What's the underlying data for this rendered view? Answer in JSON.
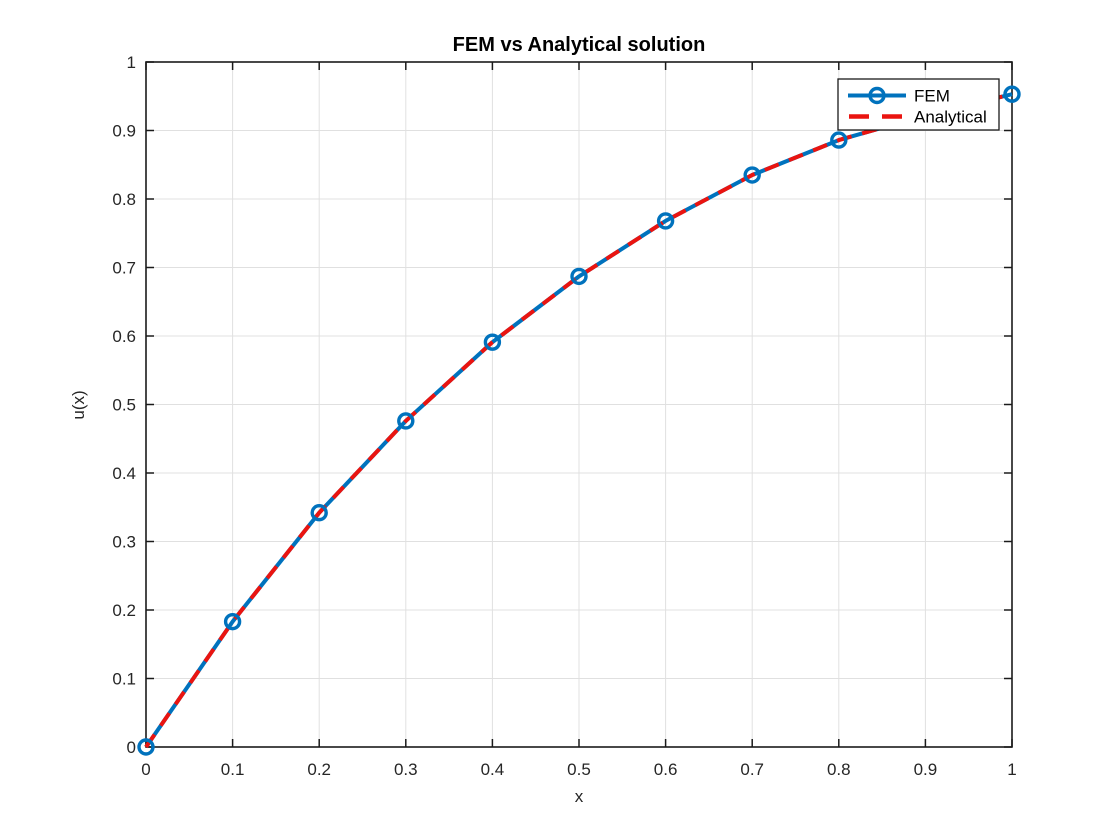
{
  "figure": {
    "title": "FEM vs Analytical solution",
    "xlabel": "x",
    "ylabel": "u(x)"
  },
  "legend": {
    "position": "top-right",
    "entries": [
      {
        "label": "FEM",
        "swatch": "solid-line-with-circle-marker",
        "color": "#0072bd"
      },
      {
        "label": "Analytical",
        "swatch": "dashed-line",
        "color": "#ea1410"
      }
    ]
  },
  "colors": {
    "fem_blue": "#0072bd",
    "analytical_red": "#ea1410",
    "grid": "#e0e0e0",
    "axis": "#1a1a1a",
    "tick_text": "#262626",
    "background": "#ffffff",
    "legend_background": "#ffffff",
    "legend_border": "#1a1a1a"
  },
  "chart_data": {
    "type": "line",
    "title": "FEM vs Analytical solution",
    "xlabel": "x",
    "ylabel": "u(x)",
    "xlim": [
      0,
      1
    ],
    "ylim": [
      0,
      1
    ],
    "grid": true,
    "legend_position": "top-right",
    "xticks": [
      0,
      0.1,
      0.2,
      0.3,
      0.4,
      0.5,
      0.6,
      0.7,
      0.8,
      0.9,
      1
    ],
    "xtick_labels": [
      "0",
      "0.1",
      "0.2",
      "0.3",
      "0.4",
      "0.5",
      "0.6",
      "0.7",
      "0.8",
      "0.9",
      "1"
    ],
    "yticks": [
      0,
      0.1,
      0.2,
      0.3,
      0.4,
      0.5,
      0.6,
      0.7,
      0.8,
      0.9,
      1
    ],
    "ytick_labels": [
      "0",
      "0.1",
      "0.2",
      "0.3",
      "0.4",
      "0.5",
      "0.6",
      "0.7",
      "0.8",
      "0.9",
      "1"
    ],
    "x": [
      0,
      0.1,
      0.2,
      0.3,
      0.4,
      0.5,
      0.6,
      0.7,
      0.8,
      0.9,
      1.0
    ],
    "series": [
      {
        "name": "FEM",
        "color": "#0072bd",
        "line_style": "solid",
        "marker": "circle",
        "values": [
          0,
          0.183,
          0.342,
          0.476,
          0.591,
          0.687,
          0.768,
          0.835,
          0.886,
          0.922,
          0.953
        ]
      },
      {
        "name": "Analytical",
        "color": "#ea1410",
        "line_style": "dashed",
        "marker": "none",
        "values": [
          0,
          0.183,
          0.342,
          0.476,
          0.591,
          0.687,
          0.768,
          0.835,
          0.886,
          0.922,
          0.953
        ]
      }
    ],
    "note": "FEM markers and analytical dashed curve coincide; marker at x=0.9 is hidden behind the legend box"
  }
}
